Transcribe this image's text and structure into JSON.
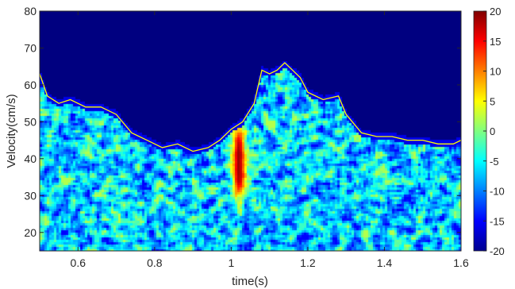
{
  "chart_data": {
    "type": "heatmap",
    "title": "",
    "xlabel": "time(s)",
    "ylabel": "Velocity(cm/s)",
    "xlim": [
      0.5,
      1.6
    ],
    "ylim": [
      15,
      80
    ],
    "x_ticks": [
      {
        "value": 0.6,
        "label": "0.6"
      },
      {
        "value": 0.8,
        "label": "0.8"
      },
      {
        "value": 1.0,
        "label": "1"
      },
      {
        "value": 1.2,
        "label": "1.2"
      },
      {
        "value": 1.4,
        "label": "1.4"
      },
      {
        "value": 1.6,
        "label": "1.6"
      }
    ],
    "y_ticks": [
      {
        "value": 20,
        "label": "20"
      },
      {
        "value": 30,
        "label": "30"
      },
      {
        "value": 40,
        "label": "40"
      },
      {
        "value": 50,
        "label": "50"
      },
      {
        "value": 60,
        "label": "60"
      },
      {
        "value": 70,
        "label": "70"
      },
      {
        "value": 80,
        "label": "80"
      }
    ],
    "colorbar": {
      "colormap": "jet",
      "range": [
        -20,
        20
      ],
      "ticks": [
        {
          "value": 20,
          "label": "20"
        },
        {
          "value": 15,
          "label": "15"
        },
        {
          "value": 10,
          "label": "10"
        },
        {
          "value": 5,
          "label": "5"
        },
        {
          "value": 0,
          "label": "0"
        },
        {
          "value": -5,
          "label": "-5"
        },
        {
          "value": -10,
          "label": "-10"
        },
        {
          "value": -15,
          "label": "-15"
        },
        {
          "value": -20,
          "label": "-20"
        }
      ]
    },
    "background_value": -20,
    "noise_level_range": [
      -15,
      2
    ],
    "hotspot": {
      "time": 1.02,
      "velocity_range": [
        29,
        49
      ],
      "peak_value": 19
    },
    "envelope": {
      "color": "#ffff00",
      "time": [
        0.5,
        0.52,
        0.55,
        0.58,
        0.62,
        0.66,
        0.7,
        0.74,
        0.78,
        0.82,
        0.86,
        0.9,
        0.94,
        0.97,
        1.0,
        1.03,
        1.06,
        1.08,
        1.1,
        1.12,
        1.14,
        1.16,
        1.18,
        1.2,
        1.24,
        1.28,
        1.3,
        1.34,
        1.38,
        1.42,
        1.46,
        1.5,
        1.54,
        1.58,
        1.6
      ],
      "velocity": [
        63,
        57,
        55,
        56,
        54,
        54,
        52,
        47,
        45,
        43,
        44,
        42,
        43,
        45,
        48,
        50,
        55,
        64,
        63,
        64,
        66,
        64,
        62,
        58,
        56,
        57,
        52,
        47,
        46,
        46,
        45,
        45,
        44,
        44,
        45
      ]
    }
  }
}
